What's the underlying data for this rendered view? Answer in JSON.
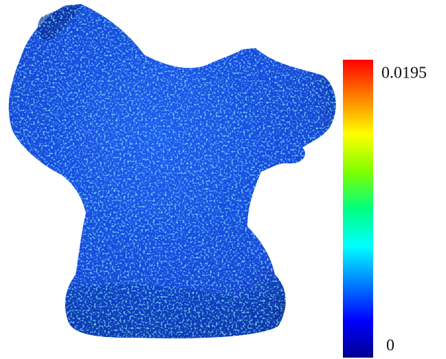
{
  "colorbar": {
    "max_label": "0.0195",
    "min_label": "0"
  }
}
